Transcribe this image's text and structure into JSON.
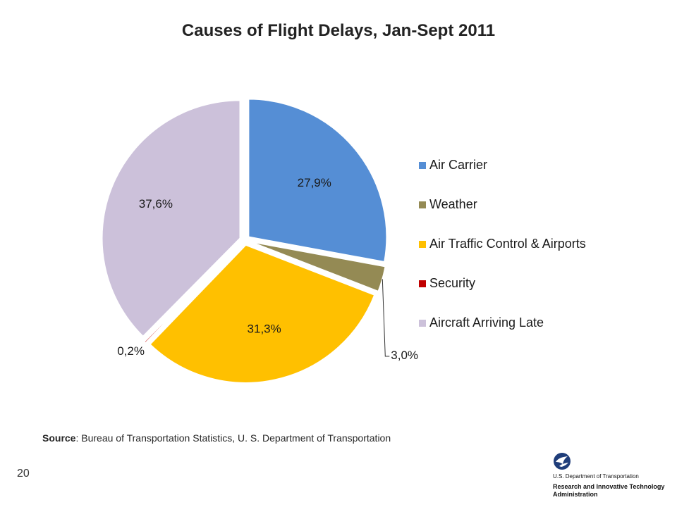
{
  "chart_data": {
    "type": "pie",
    "title": "Causes of Flight Delays, Jan-Sept 2011",
    "slices": [
      {
        "label": "Air Carrier",
        "value": 27.9,
        "display": "27,9%",
        "color": "#558ED5"
      },
      {
        "label": "Weather",
        "value": 3.0,
        "display": "3,0%",
        "color": "#948A54"
      },
      {
        "label": "Air Traffic Control & Airports",
        "value": 31.3,
        "display": "31,3%",
        "color": "#FFC000"
      },
      {
        "label": "Security",
        "value": 0.2,
        "display": "0,2%",
        "color": "#C00000"
      },
      {
        "label": "Aircraft Arriving Late",
        "value": 37.6,
        "display": "37,6%",
        "color": "#CCC1DA"
      }
    ],
    "legend_position": "right"
  },
  "source": {
    "prefix": "Source",
    "text": ": Bureau of Transportation Statistics, U. S. Department of Transportation"
  },
  "slide_number": "20",
  "logo": {
    "line1": "U.S. Department of Transportation",
    "line2": "Research and Innovative Technology Administration",
    "icon": "dot-eagle-icon"
  }
}
